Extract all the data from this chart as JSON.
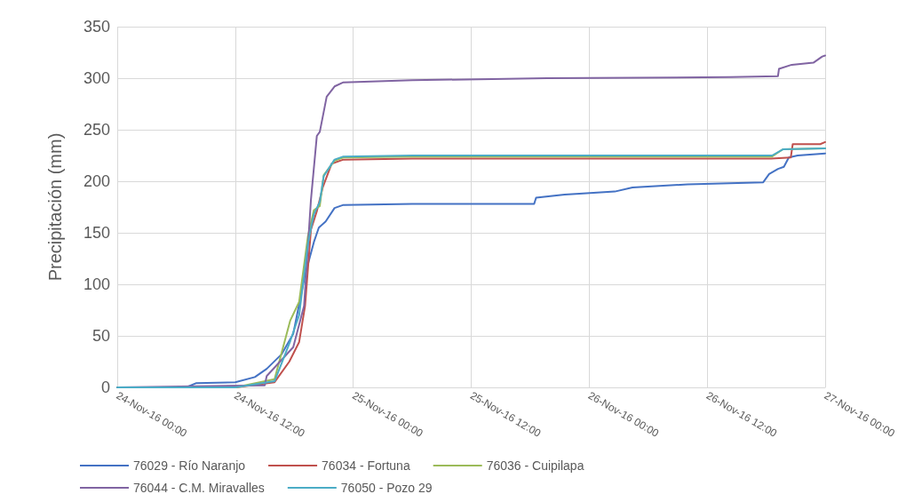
{
  "chart_data": {
    "type": "line",
    "ylabel": "Precipitación (mm)",
    "xlim": [
      "--11-24T00:00",
      "--11-27T00:00"
    ],
    "ylim": [
      0,
      350
    ],
    "xticks": [
      {
        "value": "--11-24T00:00",
        "label": "24-Nov-16 00:00"
      },
      {
        "value": "--11-24T12:00",
        "label": "24-Nov-16 12:00"
      },
      {
        "value": "--11-25T00:00",
        "label": "25-Nov-16 00:00"
      },
      {
        "value": "--11-25T12:00",
        "label": "25-Nov-16 12:00"
      },
      {
        "value": "--11-26T00:00",
        "label": "26-Nov-16 00:00"
      },
      {
        "value": "--11-26T12:00",
        "label": "26-Nov-16 12:00"
      },
      {
        "value": "--11-27T00:00",
        "label": "27-Nov-16 00:00"
      }
    ],
    "yticks": [
      0,
      50,
      100,
      150,
      200,
      250,
      300,
      350
    ],
    "grid": true,
    "legend": "bottom",
    "marker": "none",
    "line_style": "solid",
    "series": [
      {
        "name": "76029 - Río Naranjo",
        "color": "#4472c4",
        "x": [
          "--11-24T00:00",
          "--11-24T07:00",
          "--11-24T08:00",
          "--11-24T12:00",
          "--11-24T14:00",
          "--11-24T15:12",
          "--11-24T16:42",
          "--11-24T17:54",
          "--11-24T19:06",
          "--11-24T20:00",
          "--11-24T20:30",
          "--11-24T21:12",
          "--11-24T22:06",
          "--11-24T23:00",
          "--11-25T06:00",
          "--11-25T18:24",
          "--11-25T18:36",
          "--11-25T21:30",
          "--11-25T23:00",
          "--11-26T02:36",
          "--11-26T04:24",
          "--11-26T10:00",
          "--11-26T17:42",
          "--11-26T18:18",
          "--11-26T19:12",
          "--11-26T19:48",
          "--11-26T20:18",
          "--11-26T21:12",
          "--11-27T00:00"
        ],
        "values": [
          0,
          0,
          4,
          5,
          10,
          18,
          32,
          52,
          109,
          141,
          155,
          161,
          174,
          177,
          178,
          178,
          184,
          187,
          188,
          190,
          194,
          197,
          199,
          207,
          212,
          214,
          223,
          225,
          227
        ]
      },
      {
        "name": "76034 - Fortuna",
        "color": "#c0504d",
        "x": [
          "--11-24T00:00",
          "--11-24T12:00",
          "--11-24T16:00",
          "--11-24T17:30",
          "--11-24T18:30",
          "--11-24T19:06",
          "--11-24T19:42",
          "--11-24T20:18",
          "--11-24T20:54",
          "--11-24T21:48",
          "--11-24T23:00",
          "--11-25T06:00",
          "--11-26T18:30",
          "--11-26T20:30",
          "--11-26T20:42",
          "--11-26T23:30",
          "--11-27T00:00"
        ],
        "values": [
          0,
          0,
          5,
          25,
          44,
          79,
          153,
          171,
          194,
          217,
          221,
          222,
          222,
          223,
          236,
          236,
          238
        ]
      },
      {
        "name": "76036 - Cuipilapa",
        "color": "#9bbb59",
        "x": [
          "--11-24T00:00",
          "--11-24T12:00",
          "--11-24T16:00",
          "--11-24T17:36",
          "--11-24T18:30",
          "--11-24T19:24",
          "--11-24T20:00",
          "--11-24T20:36",
          "--11-24T21:00",
          "--11-24T22:06",
          "--11-24T23:00",
          "--11-25T06:00",
          "--11-26T18:36",
          "--11-26T19:42",
          "--11-27T00:00"
        ],
        "values": [
          0,
          0,
          8,
          65,
          83,
          147,
          172,
          176,
          206,
          220,
          223,
          224,
          224,
          231,
          232
        ]
      },
      {
        "name": "76044 - C.M. Miravalles",
        "color": "#8064a2",
        "x": [
          "--11-24T00:00",
          "--11-24T08:00",
          "--11-24T15:00",
          "--11-24T15:12",
          "--11-24T17:54",
          "--11-24T19:00",
          "--11-24T19:42",
          "--11-24T20:18",
          "--11-24T20:36",
          "--11-24T21:18",
          "--11-24T22:06",
          "--11-24T23:00",
          "--11-25T06:00",
          "--11-25T19:42",
          "--11-26T14:24",
          "--11-26T19:12",
          "--11-26T19:18",
          "--11-26T20:36",
          "--11-26T22:48",
          "--11-26T23:42",
          "--11-27T00:00"
        ],
        "values": [
          0,
          1,
          2,
          11,
          39,
          79,
          182,
          244,
          248,
          282,
          292,
          296,
          298,
          300,
          301,
          302,
          309,
          313,
          315,
          321,
          322
        ]
      },
      {
        "name": "76050 - Pozo 29",
        "color": "#4bacc6",
        "x": [
          "--11-24T00:00",
          "--11-24T12:00",
          "--11-24T16:00",
          "--11-24T17:36",
          "--11-24T18:30",
          "--11-24T19:24",
          "--11-24T20:00",
          "--11-24T20:36",
          "--11-24T21:00",
          "--11-24T22:06",
          "--11-24T23:00",
          "--11-25T06:00",
          "--11-26T18:36",
          "--11-26T19:42",
          "--11-27T00:00"
        ],
        "values": [
          0,
          0,
          6,
          45,
          70,
          140,
          168,
          180,
          205,
          221,
          224,
          225,
          225,
          231,
          232
        ]
      }
    ]
  }
}
